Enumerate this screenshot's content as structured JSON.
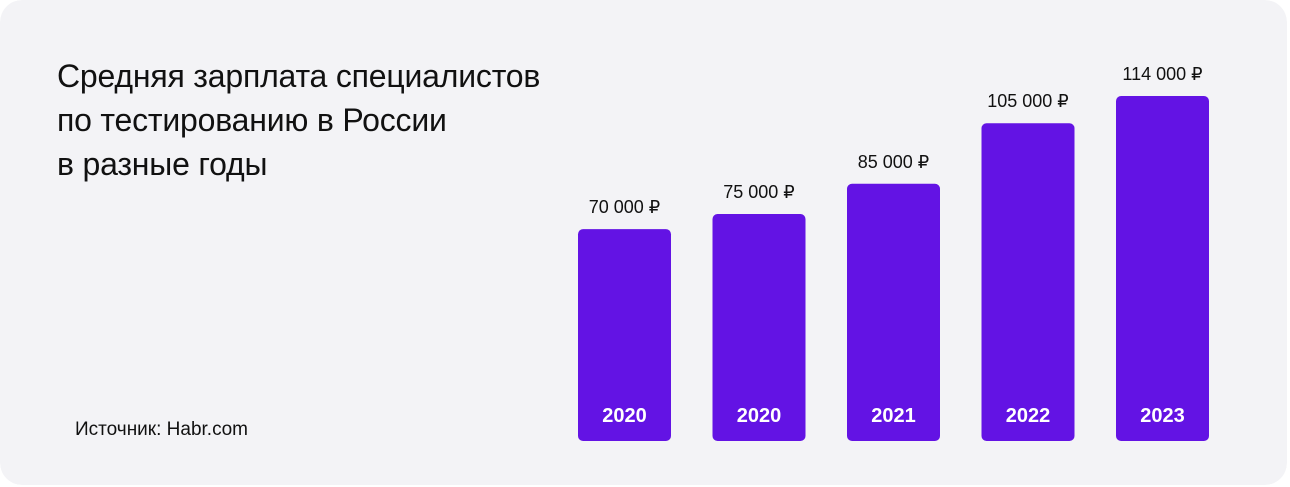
{
  "colors": {
    "background": "#f3f3f6",
    "bar": "#6313e4",
    "text": "#111111",
    "bar_label": "#ffffff"
  },
  "title_lines": [
    "Средняя зарплата специалистов",
    "по тестированию в России",
    "в разные годы"
  ],
  "source": "Источник: Habr.com",
  "chart_data": {
    "type": "bar",
    "title": "Средняя зарплата специалистов по тестированию в России в разные годы",
    "categories": [
      "2020",
      "2020",
      "2021",
      "2022",
      "2023"
    ],
    "values": [
      70000,
      75000,
      85000,
      105000,
      114000
    ],
    "value_labels": [
      "70 000 ₽",
      "75 000 ₽",
      "85 000 ₽",
      "105 000 ₽",
      "114 000 ₽"
    ],
    "ylim": [
      0,
      114000
    ],
    "grid": false,
    "legend": "none"
  }
}
